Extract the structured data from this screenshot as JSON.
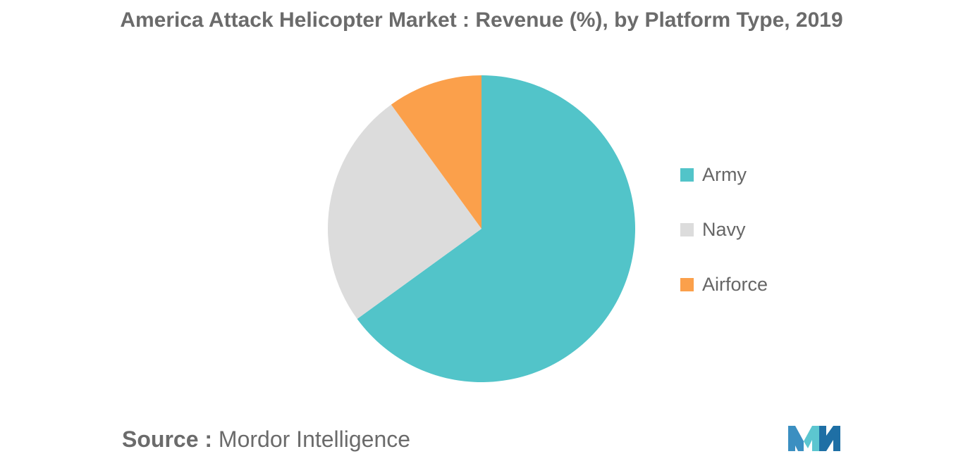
{
  "title": "America Attack Helicopter Market : Revenue (%), by Platform Type, 2019",
  "chart_data": {
    "type": "pie",
    "title": "America Attack Helicopter Market : Revenue (%), by Platform Type, 2019",
    "categories": [
      "Army",
      "Navy",
      "Airforce"
    ],
    "values": [
      65,
      25,
      10
    ],
    "colors": [
      "#52C4C9",
      "#DCDCDC",
      "#FBA04B"
    ],
    "start_angle_deg": 0,
    "direction": "clockwise",
    "legend_position": "right"
  },
  "source": {
    "label": "Source :",
    "text": "Mordor Intelligence"
  },
  "logo_icon": "mordor-intelligence-logo"
}
